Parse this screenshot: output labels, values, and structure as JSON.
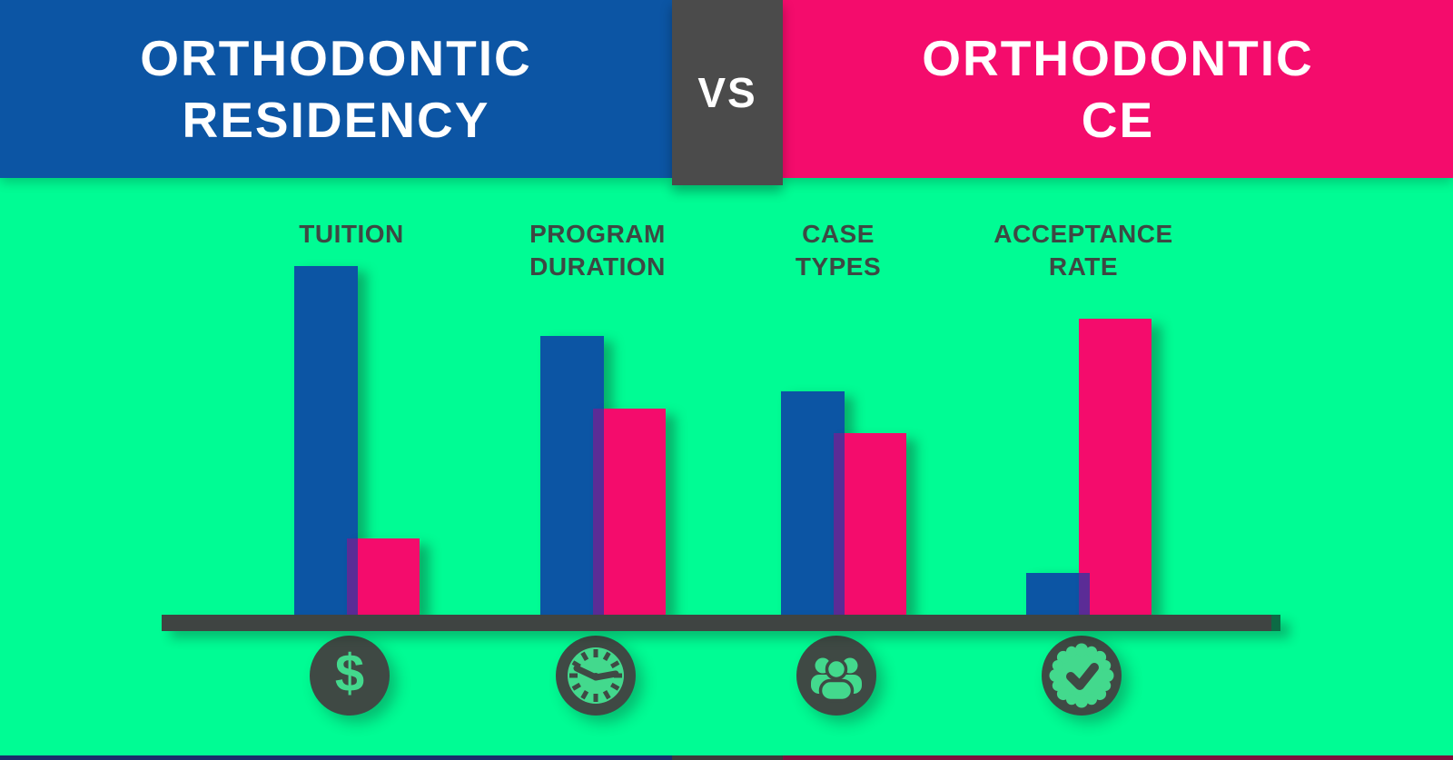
{
  "title": "Orthodontic Residency vs Orthodontic CE",
  "header": {
    "left_line1": "ORTHODONTIC",
    "left_line2": "RESIDENCY",
    "vs_label": "VS",
    "right_line1": "ORTHODONTIC",
    "right_line2": "CE"
  },
  "chart_data": {
    "type": "bar",
    "categories": [
      "TUITION",
      "PROGRAM DURATION",
      "CASE TYPES",
      "ACCEPTANCE RATE"
    ],
    "category_lines": [
      [
        "TUITION"
      ],
      [
        "PROGRAM",
        "DURATION"
      ],
      [
        "CASE",
        "TYPES"
      ],
      [
        "ACCEPTANCE",
        "RATE"
      ]
    ],
    "series": [
      {
        "name": "Orthodontic Residency",
        "color": "#0C55A4",
        "values": [
          100,
          80,
          64,
          12
        ]
      },
      {
        "name": "Orthodontic CE",
        "color": "#F40C6C",
        "values": [
          22,
          59,
          52,
          85
        ]
      }
    ],
    "ylabel": "",
    "xlabel": "",
    "value_unit": "relative bar height, % of tallest bar (no numeric axis shown)",
    "ylim": [
      0,
      100
    ],
    "grid": false,
    "legend_position": "header-banners",
    "title": "Orthodontic Residency vs Orthodontic CE"
  },
  "icons": {
    "tuition": "dollar-sign",
    "program_duration": "clock",
    "case_types": "people-group",
    "acceptance_rate": "check-badge",
    "dollar_glyph": "$"
  },
  "colors": {
    "background_green": "#00FC94",
    "residency_blue": "#0C55A4",
    "ce_pink": "#F40C6C",
    "vs_gray": "#4B4B4B",
    "overlap_purple": "#5B2C96",
    "baseline_gray": "#3F4442",
    "icon_disc_gray": "#3F4944",
    "icon_glyph_green": "#43D98D",
    "label_gray": "#3D4843",
    "footer_navy": "#1A2C6B",
    "footer_maroon": "#7D0F3D",
    "text_white": "#FFFFFF"
  }
}
